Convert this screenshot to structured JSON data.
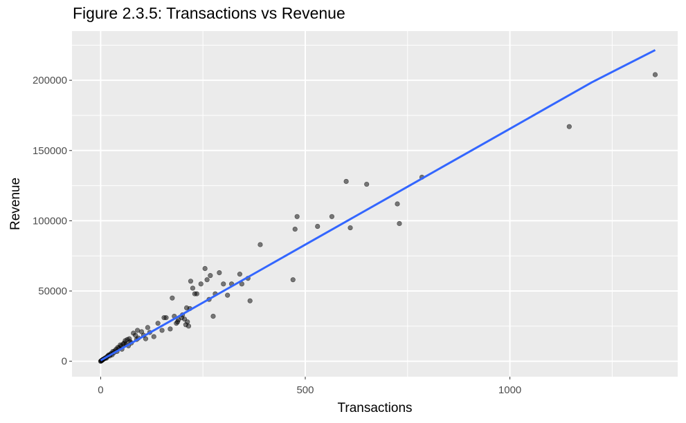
{
  "title": "Figure 2.3.5: Transactions vs Revenue",
  "colors": {
    "panel": "#EBEBEB",
    "grid": "#FFFFFF",
    "point": "#000000",
    "fit_line": "#3366FF"
  },
  "chart_data": {
    "type": "scatter",
    "title": "Figure 2.3.5: Transactions vs Revenue",
    "xlabel": "Transactions",
    "ylabel": "Revenue",
    "xlim": [
      -70,
      1410
    ],
    "ylim": [
      -11000,
      235000
    ],
    "x_ticks": [
      0,
      500,
      1000
    ],
    "x_tick_labels": [
      "0",
      "500",
      "1000"
    ],
    "y_ticks": [
      0,
      50000,
      100000,
      150000,
      200000
    ],
    "y_tick_labels": [
      "0",
      "50000",
      "100000",
      "150000",
      "200000"
    ],
    "grid": true,
    "legend": "none",
    "series": [
      {
        "type": "scatter",
        "points": [
          [
            0,
            0
          ],
          [
            1,
            200
          ],
          [
            2,
            400
          ],
          [
            3,
            600
          ],
          [
            4,
            900
          ],
          [
            5,
            1100
          ],
          [
            6,
            1300
          ],
          [
            8,
            1600
          ],
          [
            10,
            2000
          ],
          [
            12,
            2500
          ],
          [
            14,
            2200
          ],
          [
            16,
            3300
          ],
          [
            18,
            3900
          ],
          [
            20,
            4500
          ],
          [
            22,
            3800
          ],
          [
            24,
            4900
          ],
          [
            26,
            5600
          ],
          [
            28,
            4600
          ],
          [
            30,
            7000
          ],
          [
            32,
            6000
          ],
          [
            35,
            7400
          ],
          [
            38,
            8600
          ],
          [
            40,
            7000
          ],
          [
            42,
            9800
          ],
          [
            45,
            9400
          ],
          [
            48,
            11600
          ],
          [
            50,
            10700
          ],
          [
            52,
            8600
          ],
          [
            55,
            12300
          ],
          [
            58,
            13000
          ],
          [
            60,
            14600
          ],
          [
            62,
            12000
          ],
          [
            65,
            15400
          ],
          [
            68,
            11000
          ],
          [
            70,
            16000
          ],
          [
            72,
            14000
          ],
          [
            75,
            13000
          ],
          [
            80,
            20000
          ],
          [
            85,
            18500
          ],
          [
            88,
            15500
          ],
          [
            90,
            22000
          ],
          [
            92,
            16500
          ],
          [
            100,
            21000
          ],
          [
            105,
            18500
          ],
          [
            110,
            16000
          ],
          [
            115,
            24000
          ],
          [
            120,
            20500
          ],
          [
            130,
            17500
          ],
          [
            140,
            27000
          ],
          [
            150,
            22000
          ],
          [
            155,
            31000
          ],
          [
            160,
            31000
          ],
          [
            170,
            23000
          ],
          [
            175,
            45000
          ],
          [
            180,
            32000
          ],
          [
            185,
            27000
          ],
          [
            188,
            28000
          ],
          [
            190,
            29500
          ],
          [
            198,
            31000
          ],
          [
            200,
            33000
          ],
          [
            205,
            30000
          ],
          [
            208,
            26000
          ],
          [
            210,
            38000
          ],
          [
            212,
            28000
          ],
          [
            215,
            25000
          ],
          [
            218,
            37500
          ],
          [
            220,
            57000
          ],
          [
            225,
            52000
          ],
          [
            230,
            48000
          ],
          [
            235,
            48000
          ],
          [
            245,
            55000
          ],
          [
            255,
            66000
          ],
          [
            260,
            58000
          ],
          [
            265,
            44000
          ],
          [
            268,
            61000
          ],
          [
            275,
            32000
          ],
          [
            280,
            48000
          ],
          [
            290,
            63000
          ],
          [
            300,
            55000
          ],
          [
            310,
            47000
          ],
          [
            320,
            55000
          ],
          [
            340,
            62000
          ],
          [
            345,
            55000
          ],
          [
            360,
            59000
          ],
          [
            365,
            43000
          ],
          [
            390,
            83000
          ],
          [
            470,
            58000
          ],
          [
            475,
            94000
          ],
          [
            480,
            103000
          ],
          [
            530,
            96000
          ],
          [
            565,
            103000
          ],
          [
            600,
            128000
          ],
          [
            610,
            95000
          ],
          [
            650,
            126000
          ],
          [
            725,
            112000
          ],
          [
            730,
            98000
          ],
          [
            785,
            131000
          ],
          [
            1145,
            167000
          ],
          [
            1355,
            204000
          ]
        ]
      },
      {
        "type": "line",
        "name": "",
        "points": [
          [
            0,
            600
          ],
          [
            100,
            17000
          ],
          [
            200,
            33500
          ],
          [
            300,
            50000
          ],
          [
            400,
            66500
          ],
          [
            500,
            83000
          ],
          [
            600,
            99500
          ],
          [
            700,
            116000
          ],
          [
            800,
            132500
          ],
          [
            900,
            149000
          ],
          [
            1000,
            165500
          ],
          [
            1100,
            182000
          ],
          [
            1200,
            198500
          ],
          [
            1355,
            221500
          ]
        ]
      }
    ]
  }
}
